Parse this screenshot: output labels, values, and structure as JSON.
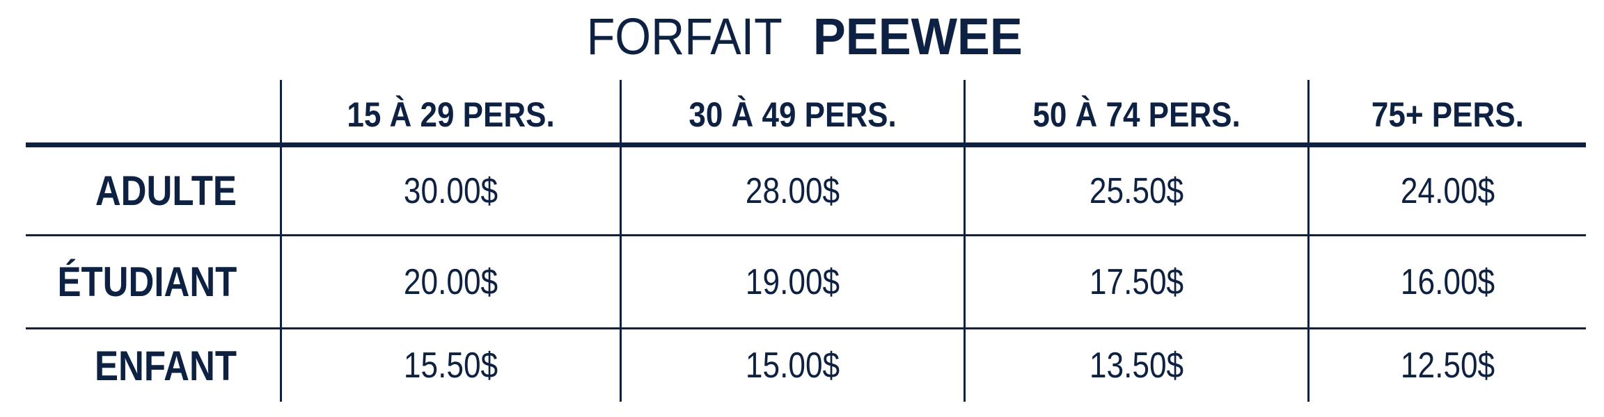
{
  "title": {
    "light": "FORFAIT",
    "bold": "PEEWEE"
  },
  "colors": {
    "text": "#0d2145",
    "background": "#ffffff"
  },
  "columns": [
    "15 À 29 PERS.",
    "30 À 49 PERS.",
    "50 À 74 PERS.",
    "75+ PERS."
  ],
  "rows": [
    {
      "label": "ADULTE",
      "values": [
        "30.00$",
        "28.00$",
        "25.50$",
        "24.00$"
      ]
    },
    {
      "label": "ÉTUDIANT",
      "values": [
        "20.00$",
        "19.00$",
        "17.50$",
        "16.00$"
      ]
    },
    {
      "label": "ENFANT",
      "values": [
        "15.50$",
        "15.00$",
        "13.50$",
        "12.50$"
      ]
    }
  ]
}
